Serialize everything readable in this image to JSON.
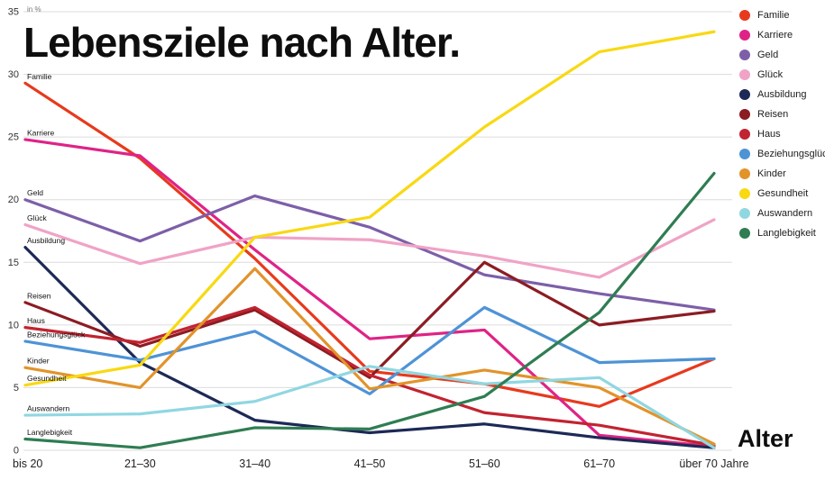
{
  "title": "Lebensziele nach Alter.",
  "ylabel": "in %",
  "xlabel": "Alter",
  "chart_data": {
    "type": "line",
    "title": "Lebensziele nach Alter.",
    "xlabel": "Alter",
    "ylabel": "in %",
    "ylim": [
      0,
      35
    ],
    "yticks": [
      0,
      5,
      10,
      15,
      20,
      25,
      30,
      35
    ],
    "grid": true,
    "legend_position": "top-right",
    "categories": [
      "bis 20",
      "21–30",
      "31–40",
      "41–50",
      "51–60",
      "61–70",
      "über 70 Jahre"
    ],
    "series": [
      {
        "name": "Familie",
        "color": "#e8391d",
        "values": [
          29.3,
          23.3,
          15.3,
          6.3,
          5.3,
          3.5,
          7.3
        ]
      },
      {
        "name": "Karriere",
        "color": "#df2386",
        "values": [
          24.8,
          23.5,
          16.0,
          8.9,
          9.6,
          1.2,
          0.3
        ]
      },
      {
        "name": "Geld",
        "color": "#7d5fa8",
        "values": [
          20.0,
          16.7,
          20.3,
          17.8,
          14.0,
          12.5,
          11.2
        ]
      },
      {
        "name": "Glück",
        "color": "#f0a3c6",
        "values": [
          18.0,
          14.9,
          17.0,
          16.8,
          15.5,
          13.8,
          18.4
        ]
      },
      {
        "name": "Ausbildung",
        "color": "#1d2956",
        "values": [
          16.2,
          7.0,
          2.4,
          1.4,
          2.1,
          1.0,
          0.2
        ]
      },
      {
        "name": "Reisen",
        "color": "#8c1c22",
        "values": [
          11.8,
          8.3,
          11.2,
          5.8,
          15.0,
          10.0,
          11.1
        ]
      },
      {
        "name": "Haus",
        "color": "#c22330",
        "values": [
          9.8,
          8.6,
          11.4,
          6.0,
          3.0,
          2.0,
          0.4
        ]
      },
      {
        "name": "Beziehungsglück",
        "color": "#4e93d6",
        "values": [
          8.7,
          7.2,
          9.5,
          4.5,
          11.4,
          7.0,
          7.3
        ]
      },
      {
        "name": "Kinder",
        "color": "#e2932a",
        "values": [
          6.6,
          5.0,
          14.5,
          4.9,
          6.4,
          5.0,
          0.5
        ]
      },
      {
        "name": "Gesundheit",
        "color": "#f8d912",
        "values": [
          5.2,
          6.8,
          17.0,
          18.6,
          25.8,
          31.8,
          33.4
        ]
      },
      {
        "name": "Auswandern",
        "color": "#90d7e2",
        "values": [
          2.8,
          2.9,
          3.9,
          6.7,
          5.3,
          5.8,
          0.2
        ]
      },
      {
        "name": "Langlebigkeit",
        "color": "#2f7d52",
        "values": [
          0.9,
          0.2,
          1.8,
          1.7,
          4.3,
          11.0,
          22.1
        ]
      }
    ]
  }
}
